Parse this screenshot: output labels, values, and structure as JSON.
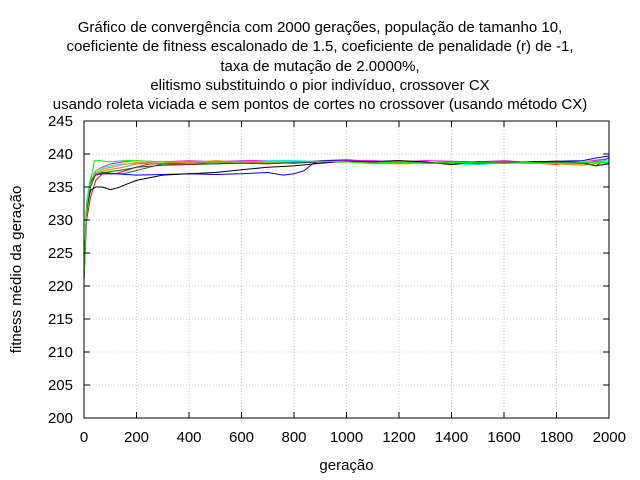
{
  "chart_data": {
    "type": "line",
    "title_lines": [
      "Gráfico de convergência com 2000 gerações, população de tamanho 10,",
      "coeficiente de fitness escalonado de 1.5, coeficiente de penalidade (r) de -1,",
      "taxa de mutação de 2.0000%,",
      "elitismo substituindo o pior indivíduo, crossover CX",
      "usando roleta viciada e sem pontos de cortes no crossover (usando método CX)"
    ],
    "xlabel": "geração",
    "ylabel": "fitness médio da geração",
    "xlim": [
      0,
      2000
    ],
    "ylim": [
      200,
      245
    ],
    "xticks": [
      0,
      200,
      400,
      600,
      800,
      1000,
      1200,
      1400,
      1600,
      1800,
      2000
    ],
    "yticks": [
      200,
      205,
      210,
      215,
      220,
      225,
      230,
      235,
      240,
      245
    ],
    "grid": true,
    "grid_style": "dotted",
    "legend": "none",
    "series": [
      {
        "color": "#ff0000",
        "points": [
          [
            0,
            221
          ],
          [
            10,
            230
          ],
          [
            25,
            233.5
          ],
          [
            45,
            236
          ],
          [
            70,
            237
          ],
          [
            120,
            237
          ],
          [
            160,
            237.5
          ],
          [
            200,
            238
          ],
          [
            250,
            238.5
          ],
          [
            300,
            238.5
          ],
          [
            400,
            238.5
          ],
          [
            500,
            238.8
          ],
          [
            600,
            238.8
          ],
          [
            700,
            238.6
          ],
          [
            800,
            238.8
          ],
          [
            900,
            239
          ],
          [
            1000,
            239
          ],
          [
            1100,
            238.7
          ],
          [
            1200,
            238.7
          ],
          [
            1300,
            238.6
          ],
          [
            1400,
            238.5
          ],
          [
            1500,
            238.8
          ],
          [
            1600,
            238.6
          ],
          [
            1700,
            238.7
          ],
          [
            1800,
            238.4
          ],
          [
            1850,
            238.8
          ],
          [
            1900,
            238.6
          ],
          [
            1950,
            239
          ],
          [
            2000,
            239.3
          ]
        ]
      },
      {
        "color": "#008000",
        "points": [
          [
            0,
            221
          ],
          [
            10,
            231
          ],
          [
            25,
            235
          ],
          [
            45,
            237
          ],
          [
            70,
            237.2
          ],
          [
            120,
            237
          ],
          [
            150,
            237
          ],
          [
            200,
            237.5
          ],
          [
            250,
            238
          ],
          [
            300,
            238.5
          ],
          [
            400,
            238.6
          ],
          [
            500,
            238.5
          ],
          [
            600,
            238.8
          ],
          [
            700,
            238.7
          ],
          [
            800,
            238.6
          ],
          [
            900,
            238.8
          ],
          [
            1000,
            239
          ],
          [
            1100,
            238.8
          ],
          [
            1200,
            238.9
          ],
          [
            1300,
            238.6
          ],
          [
            1400,
            238.7
          ],
          [
            1500,
            238.8
          ],
          [
            1600,
            238.7
          ],
          [
            1700,
            238.6
          ],
          [
            1800,
            238.8
          ],
          [
            1900,
            238.6
          ],
          [
            1950,
            238.2
          ],
          [
            2000,
            239.5
          ]
        ]
      },
      {
        "color": "#0000ff",
        "points": [
          [
            0,
            221
          ],
          [
            10,
            232
          ],
          [
            25,
            236
          ],
          [
            45,
            236.8
          ],
          [
            70,
            237
          ],
          [
            120,
            237
          ],
          [
            200,
            236.8
          ],
          [
            300,
            236.9
          ],
          [
            400,
            237
          ],
          [
            500,
            236.9
          ],
          [
            600,
            237
          ],
          [
            700,
            237.2
          ],
          [
            760,
            236.8
          ],
          [
            800,
            237
          ],
          [
            840,
            237.5
          ],
          [
            870,
            238.5
          ],
          [
            900,
            239
          ],
          [
            1000,
            239.1
          ],
          [
            1100,
            238.9
          ],
          [
            1200,
            239
          ],
          [
            1300,
            238.7
          ],
          [
            1400,
            238.5
          ],
          [
            1500,
            238.8
          ],
          [
            1600,
            238.7
          ],
          [
            1700,
            238.8
          ],
          [
            1800,
            238.9
          ],
          [
            1900,
            239
          ],
          [
            1950,
            239.4
          ],
          [
            2000,
            239.7
          ]
        ]
      },
      {
        "color": "#ff00ff",
        "points": [
          [
            0,
            221
          ],
          [
            10,
            232
          ],
          [
            25,
            235.5
          ],
          [
            45,
            237.5
          ],
          [
            70,
            238
          ],
          [
            100,
            238.5
          ],
          [
            150,
            238.8
          ],
          [
            200,
            239
          ],
          [
            300,
            238.8
          ],
          [
            400,
            239
          ],
          [
            500,
            238.8
          ],
          [
            600,
            239
          ],
          [
            700,
            239
          ],
          [
            800,
            239
          ],
          [
            900,
            238.8
          ],
          [
            1000,
            239
          ],
          [
            1100,
            239
          ],
          [
            1200,
            238.8
          ],
          [
            1300,
            239
          ],
          [
            1400,
            238.9
          ],
          [
            1500,
            238.8
          ],
          [
            1600,
            239
          ],
          [
            1700,
            238.7
          ],
          [
            1800,
            238.9
          ],
          [
            1900,
            238.8
          ],
          [
            2000,
            239.3
          ]
        ]
      },
      {
        "color": "#00ffff",
        "points": [
          [
            0,
            221
          ],
          [
            10,
            233
          ],
          [
            25,
            236.5
          ],
          [
            45,
            237.5
          ],
          [
            80,
            238
          ],
          [
            120,
            238.4
          ],
          [
            200,
            238.6
          ],
          [
            300,
            238.8
          ],
          [
            400,
            238.6
          ],
          [
            500,
            238.8
          ],
          [
            600,
            238.7
          ],
          [
            700,
            239
          ],
          [
            800,
            239
          ],
          [
            900,
            238.9
          ],
          [
            1000,
            238.8
          ],
          [
            1100,
            238.5
          ],
          [
            1200,
            238.6
          ],
          [
            1300,
            238.7
          ],
          [
            1400,
            238.5
          ],
          [
            1500,
            238.4
          ],
          [
            1600,
            238.6
          ],
          [
            1700,
            238.6
          ],
          [
            1800,
            238.5
          ],
          [
            1900,
            238.8
          ],
          [
            2000,
            239
          ]
        ]
      },
      {
        "color": "#999900",
        "points": [
          [
            0,
            221
          ],
          [
            10,
            232
          ],
          [
            25,
            236
          ],
          [
            45,
            237
          ],
          [
            80,
            237.5
          ],
          [
            150,
            238
          ],
          [
            200,
            238.5
          ],
          [
            300,
            238.6
          ],
          [
            400,
            238.8
          ],
          [
            500,
            238.7
          ],
          [
            600,
            238.8
          ],
          [
            700,
            238.6
          ],
          [
            800,
            238.8
          ],
          [
            900,
            238.8
          ],
          [
            1000,
            238.9
          ],
          [
            1100,
            238.7
          ],
          [
            1200,
            238.6
          ],
          [
            1300,
            238.7
          ],
          [
            1400,
            238.8
          ],
          [
            1500,
            238.6
          ],
          [
            1600,
            238.6
          ],
          [
            1700,
            238.8
          ],
          [
            1800,
            238.6
          ],
          [
            1900,
            238.5
          ],
          [
            1950,
            238.9
          ],
          [
            2000,
            238.7
          ]
        ]
      },
      {
        "color": "#000000",
        "points": [
          [
            0,
            221
          ],
          [
            10,
            232
          ],
          [
            25,
            234.5
          ],
          [
            45,
            235
          ],
          [
            70,
            235
          ],
          [
            100,
            234.6
          ],
          [
            130,
            234.9
          ],
          [
            160,
            235.4
          ],
          [
            200,
            236
          ],
          [
            250,
            236.4
          ],
          [
            300,
            236.8
          ],
          [
            400,
            237
          ],
          [
            500,
            237.2
          ],
          [
            600,
            237.6
          ],
          [
            700,
            238
          ],
          [
            800,
            238.2
          ],
          [
            900,
            238.6
          ],
          [
            1000,
            238.9
          ],
          [
            1100,
            238.8
          ],
          [
            1200,
            239
          ],
          [
            1300,
            238.8
          ],
          [
            1400,
            238.4
          ],
          [
            1500,
            238.8
          ],
          [
            1600,
            238.6
          ],
          [
            1700,
            238.8
          ],
          [
            1800,
            238.9
          ],
          [
            1900,
            238.7
          ],
          [
            1950,
            238.2
          ],
          [
            2000,
            238.5
          ]
        ]
      },
      {
        "color": "#ff8000",
        "points": [
          [
            0,
            221
          ],
          [
            10,
            232
          ],
          [
            25,
            236
          ],
          [
            45,
            237.2
          ],
          [
            80,
            237.8
          ],
          [
            150,
            238.4
          ],
          [
            200,
            238.7
          ],
          [
            300,
            238.8
          ],
          [
            400,
            238.7
          ],
          [
            500,
            239
          ],
          [
            600,
            238.8
          ],
          [
            700,
            238.7
          ],
          [
            800,
            238.8
          ],
          [
            900,
            238.9
          ],
          [
            1000,
            238.8
          ],
          [
            1100,
            238.6
          ],
          [
            1200,
            238.5
          ],
          [
            1300,
            238.6
          ],
          [
            1400,
            238.7
          ],
          [
            1500,
            238.5
          ],
          [
            1600,
            238.7
          ],
          [
            1700,
            238.6
          ],
          [
            1800,
            238.5
          ],
          [
            1900,
            238.3
          ],
          [
            2000,
            238.8
          ]
        ]
      },
      {
        "color": "#404040",
        "points": [
          [
            0,
            221
          ],
          [
            10,
            232
          ],
          [
            25,
            235.8
          ],
          [
            45,
            236.8
          ],
          [
            80,
            237.2
          ],
          [
            150,
            237.6
          ],
          [
            200,
            238
          ],
          [
            300,
            238.3
          ],
          [
            400,
            238.4
          ],
          [
            500,
            238.5
          ],
          [
            600,
            238.6
          ],
          [
            700,
            238.5
          ],
          [
            800,
            238.7
          ],
          [
            900,
            238.8
          ],
          [
            1000,
            238.8
          ],
          [
            1100,
            238.8
          ],
          [
            1200,
            238.9
          ],
          [
            1300,
            238.6
          ],
          [
            1400,
            238.7
          ],
          [
            1500,
            238.6
          ],
          [
            1600,
            238.8
          ],
          [
            1700,
            238.7
          ],
          [
            1800,
            238.8
          ],
          [
            1900,
            238.6
          ],
          [
            1950,
            238.2
          ],
          [
            2000,
            238.6
          ]
        ]
      },
      {
        "color": "#00ff00",
        "points": [
          [
            0,
            221
          ],
          [
            10,
            232
          ],
          [
            25,
            236
          ],
          [
            40,
            239
          ],
          [
            60,
            239
          ],
          [
            100,
            238.8
          ],
          [
            150,
            239
          ],
          [
            200,
            239
          ],
          [
            300,
            238.8
          ],
          [
            400,
            238.9
          ],
          [
            500,
            238.8
          ],
          [
            600,
            238.9
          ],
          [
            700,
            238.8
          ],
          [
            800,
            238.8
          ],
          [
            900,
            238.9
          ],
          [
            1000,
            238.8
          ],
          [
            1100,
            238.6
          ],
          [
            1200,
            238.8
          ],
          [
            1300,
            238.6
          ],
          [
            1400,
            238.7
          ],
          [
            1500,
            238.7
          ],
          [
            1600,
            238.6
          ],
          [
            1700,
            238.7
          ],
          [
            1800,
            238.6
          ],
          [
            1900,
            238.7
          ],
          [
            2000,
            238.7
          ]
        ]
      }
    ]
  }
}
